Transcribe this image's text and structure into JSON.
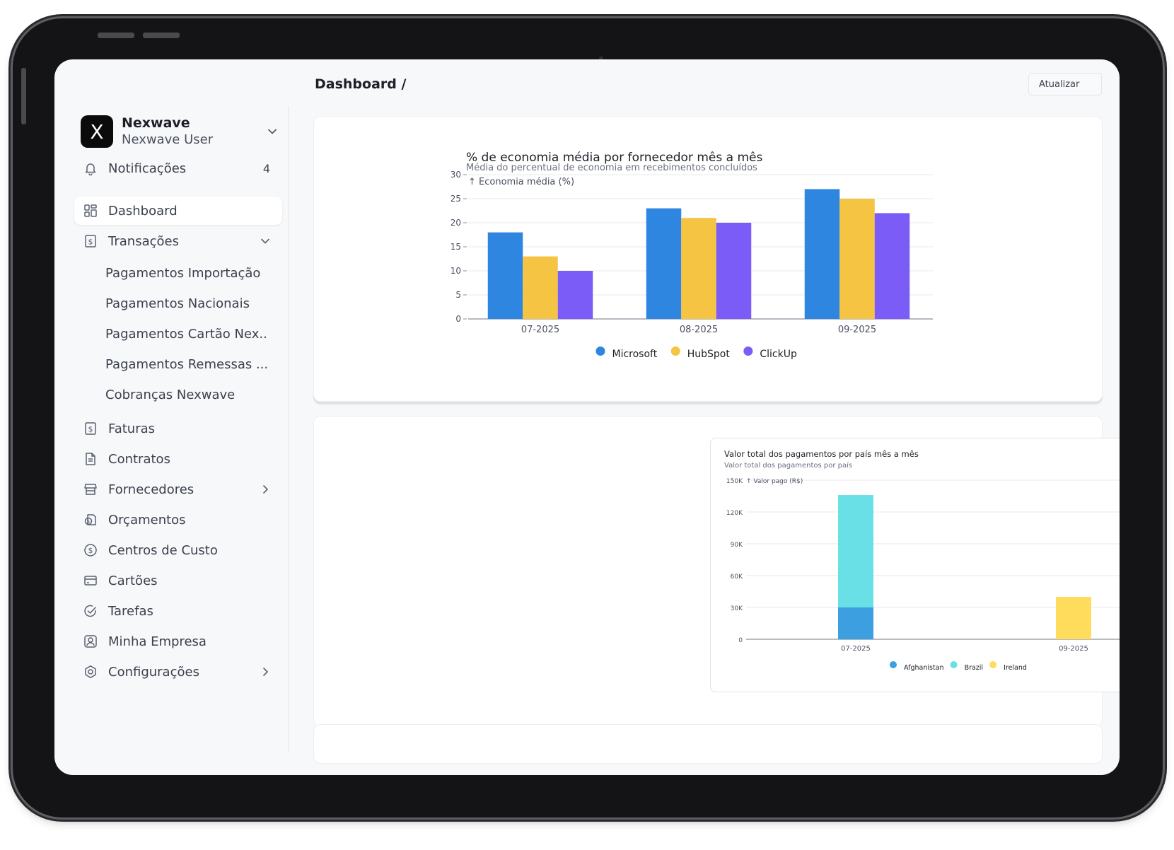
{
  "account": {
    "initial": "X",
    "name": "Nexwave",
    "user": "Nexwave User"
  },
  "sidebar": {
    "notifications": {
      "label": "Notificações",
      "count": "4"
    },
    "items": [
      {
        "key": "dashboard",
        "label": "Dashboard",
        "icon": "grid-icon"
      },
      {
        "key": "transacoes",
        "label": "Transações",
        "icon": "dollar-doc-icon"
      },
      {
        "key": "faturas",
        "label": "Faturas",
        "icon": "dollar-doc-icon"
      },
      {
        "key": "contratos",
        "label": "Contratos",
        "icon": "document-icon"
      },
      {
        "key": "fornecedores",
        "label": "Fornecedores",
        "icon": "store-icon"
      },
      {
        "key": "orcamentos",
        "label": "Orçamentos",
        "icon": "budget-icon"
      },
      {
        "key": "centros",
        "label": "Centros de Custo",
        "icon": "coin-icon"
      },
      {
        "key": "cartoes",
        "label": "Cartões",
        "icon": "card-icon"
      },
      {
        "key": "tarefas",
        "label": "Tarefas",
        "icon": "check-circle-icon"
      },
      {
        "key": "empresa",
        "label": "Minha Empresa",
        "icon": "user-square-icon"
      },
      {
        "key": "config",
        "label": "Configurações",
        "icon": "gear-icon"
      }
    ],
    "subitems": [
      "Pagamentos Importação",
      "Pagamentos Nacionais",
      "Pagamentos Cartão Nex...",
      "Pagamentos Remessas ...",
      "Cobranças Nexwave"
    ]
  },
  "header": {
    "breadcrumb": "Dashboard /",
    "refresh_label": "Atualizar"
  },
  "chart_data": [
    {
      "type": "bar",
      "title": "% de economia média por fornecedor mês a mês",
      "subtitle": "Média do percentual de economia em recebimentos concluídos",
      "ylabel": "↑ Economia média (%)",
      "ylim": [
        0,
        30
      ],
      "yticks": [
        "0",
        "5",
        "10",
        "15",
        "20",
        "25",
        "30"
      ],
      "categories": [
        "07-2025",
        "08-2025",
        "09-2025"
      ],
      "series": [
        {
          "name": "Microsoft",
          "color": "#2f86e0",
          "values": [
            18,
            23,
            27
          ]
        },
        {
          "name": "HubSpot",
          "color": "#f5c443",
          "values": [
            13,
            21,
            25
          ]
        },
        {
          "name": "ClickUp",
          "color": "#7b5cf7",
          "values": [
            10,
            20,
            22
          ]
        }
      ],
      "grid": true,
      "legend": "bottom"
    },
    {
      "type": "bar",
      "stacked": true,
      "title": "Valor total dos pagamentos por país mês a mês",
      "subtitle": "Valor total dos pagamentos por país",
      "ylabel": "↑ Valor pago (R$)",
      "ylim": [
        0,
        150000
      ],
      "yticks": [
        "0",
        "30K",
        "60K",
        "90K",
        "120K",
        "150K"
      ],
      "categories": [
        "07-2025",
        "09-2025"
      ],
      "series": [
        {
          "name": "Afghanistan",
          "color": "#3b9fe0",
          "values": [
            30000,
            0
          ]
        },
        {
          "name": "Brazil",
          "color": "#68e0e6",
          "values": [
            106000,
            0
          ]
        },
        {
          "name": "Ireland",
          "color": "#ffdc5c",
          "values": [
            0,
            40000
          ]
        }
      ],
      "grid": true,
      "legend": "bottom"
    }
  ]
}
